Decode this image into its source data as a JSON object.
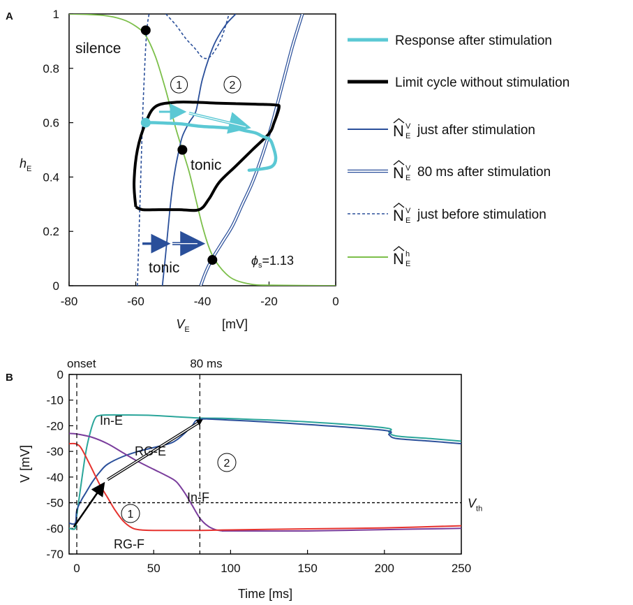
{
  "chart_data": [
    {
      "panel": "A",
      "type": "line",
      "xlabel_main": "V",
      "xlabel_sub": "E",
      "xlabel_unit": "[mV]",
      "ylabel_main": "h",
      "ylabel_sub": "E",
      "xlim": [
        -80,
        0
      ],
      "ylim": [
        0,
        1
      ],
      "xticks": [
        "-80",
        "-60",
        "-40",
        "-20",
        "0"
      ],
      "yticks": [
        "0",
        "0.2",
        "0.4",
        "0.6",
        "0.8",
        "1"
      ],
      "annotations": {
        "silence": "silence",
        "tonic_upper": "tonic",
        "tonic_lower": "tonic",
        "circle1": "1",
        "circle2": "2",
        "phi_symbol": "ϕ",
        "phi_sub": "s",
        "phi_value": "=1.13"
      },
      "legend": [
        {
          "label": "Response after stimulation",
          "color": "#5bc8d4",
          "style": "thick"
        },
        {
          "label": "Limit cycle without stimulation",
          "color": "#000000",
          "style": "thick"
        },
        {
          "label": "just after stimulation",
          "color": "#2a4f9a",
          "style": "solid",
          "sym_sub": "E",
          "sym_sup": "V"
        },
        {
          "label": "80 ms after stimulation",
          "color": "#2a4f9a",
          "style": "double",
          "sym_sub": "E",
          "sym_sup": "V"
        },
        {
          "label": "just before stimulation",
          "color": "#2a4f9a",
          "style": "dashed",
          "sym_sub": "E",
          "sym_sup": "V"
        },
        {
          "label": "",
          "color": "#7cbf4a",
          "style": "solid",
          "sym_sub": "E",
          "sym_sup": "h"
        }
      ],
      "series": [
        {
          "role": "nullcline_h",
          "color": "#7cbf4a",
          "x": [
            -80,
            -70,
            -64,
            -60,
            -57,
            -54,
            -51,
            -48,
            -46,
            -44,
            -42,
            -40,
            -38,
            -36,
            -33,
            -30,
            -25,
            -20,
            0
          ],
          "y": [
            1.0,
            0.995,
            0.98,
            0.955,
            0.92,
            0.84,
            0.72,
            0.58,
            0.5,
            0.42,
            0.32,
            0.22,
            0.14,
            0.09,
            0.045,
            0.02,
            0.005,
            0.002,
            0.0
          ]
        },
        {
          "role": "nullcline_v_before",
          "color": "#2a4f9a",
          "style": "dashed",
          "x": [
            -59.5,
            -59,
            -58.5,
            -58,
            -57.5,
            -57,
            -56.5,
            -56
          ],
          "y": [
            0.0,
            0.2,
            0.4,
            0.6,
            0.75,
            0.88,
            0.96,
            1.0
          ]
        },
        {
          "role": "nullcline_v_before_top",
          "color": "#2a4f9a",
          "style": "dashed",
          "x": [
            -51,
            -48,
            -45,
            -42,
            -40,
            -38,
            -36,
            -34,
            -32
          ],
          "y": [
            1.0,
            0.96,
            0.91,
            0.87,
            0.84,
            0.84,
            0.87,
            0.92,
            1.0
          ]
        },
        {
          "role": "nullcline_v_after",
          "color": "#2a4f9a",
          "style": "solid",
          "x": [
            -52,
            -51,
            -50,
            -49,
            -48,
            -47,
            -46,
            -44,
            -42,
            -41,
            -40,
            -38,
            -36,
            -33,
            -30
          ],
          "y": [
            0.0,
            0.12,
            0.25,
            0.36,
            0.44,
            0.5,
            0.55,
            0.6,
            0.64,
            0.7,
            0.76,
            0.84,
            0.9,
            0.96,
            1.0
          ]
        },
        {
          "role": "nullcline_v_80ms_a",
          "color": "#2a4f9a",
          "style": "double",
          "x": [
            -40.5,
            -39,
            -37,
            -34,
            -31,
            -28,
            -25,
            -22,
            -19,
            -16,
            -13,
            -10
          ],
          "y": [
            0.0,
            0.05,
            0.1,
            0.16,
            0.22,
            0.3,
            0.38,
            0.48,
            0.6,
            0.74,
            0.88,
            1.0
          ]
        },
        {
          "role": "limit_cycle",
          "color": "#000000",
          "x": [
            -60,
            -60.5,
            -59.5,
            -57,
            -54,
            -48,
            -42,
            -36,
            -30,
            -24,
            -18,
            -17,
            -18.5,
            -20,
            -25,
            -30,
            -35,
            -38,
            -41,
            -47,
            -53,
            -58,
            -60
          ],
          "y": [
            0.29,
            0.38,
            0.5,
            0.6,
            0.66,
            0.675,
            0.675,
            0.672,
            0.67,
            0.668,
            0.665,
            0.655,
            0.6,
            0.56,
            0.5,
            0.44,
            0.38,
            0.32,
            0.28,
            0.28,
            0.28,
            0.28,
            0.29
          ]
        },
        {
          "role": "response",
          "color": "#5bc8d4",
          "x": [
            -57,
            -54,
            -50,
            -46,
            -43,
            -40,
            -37,
            -34,
            -30,
            -27,
            -24,
            -22,
            -20,
            -19,
            -18,
            -19,
            -22,
            -26
          ],
          "y": [
            0.6,
            0.6,
            0.598,
            0.595,
            0.59,
            0.586,
            0.584,
            0.582,
            0.578,
            0.57,
            0.562,
            0.55,
            0.54,
            0.52,
            0.47,
            0.44,
            0.43,
            0.425
          ]
        }
      ],
      "points": [
        {
          "name": "silence",
          "x": -57,
          "y": 0.94,
          "color": "#000000"
        },
        {
          "name": "tonic-upper",
          "x": -46,
          "y": 0.5,
          "color": "#000000"
        },
        {
          "name": "tonic-lower",
          "x": -37,
          "y": 0.095,
          "color": "#000000"
        },
        {
          "name": "stim-start",
          "x": -57,
          "y": 0.6,
          "color": "#5bc8d4"
        }
      ]
    },
    {
      "panel": "B",
      "type": "line",
      "xlabel": "Time [ms]",
      "ylabel": "V [mV]",
      "xlim": [
        -5,
        250
      ],
      "ylim": [
        -70,
        0
      ],
      "xticks": [
        "0",
        "50",
        "100",
        "150",
        "200",
        "250"
      ],
      "yticks": [
        "0",
        "-10",
        "-20",
        "-30",
        "-40",
        "-50",
        "-60",
        "-70"
      ],
      "vlines": [
        {
          "x": 0,
          "label": "onset"
        },
        {
          "x": 80,
          "label": "80 ms"
        }
      ],
      "threshold": {
        "y": -50,
        "label_main": "V",
        "label_sub": "th"
      },
      "series_labels": {
        "in_e": "In-E",
        "rg_e": "RG-E",
        "in_f": "In-F",
        "rg_f": "RG-F",
        "c1": "1",
        "c2": "2"
      },
      "series": [
        {
          "name": "In-E",
          "color": "#2aa59a",
          "x": [
            -5,
            -1,
            0,
            3,
            6,
            9,
            12,
            15,
            20,
            30,
            50,
            80,
            100,
            150,
            200,
            203,
            208,
            230,
            250
          ],
          "y": [
            -60,
            -60,
            -55,
            -42,
            -30,
            -22,
            -17,
            -16,
            -15.8,
            -15.8,
            -16,
            -17,
            -17.2,
            -18.5,
            -20.8,
            -22.5,
            -24,
            -25,
            -26
          ]
        },
        {
          "name": "RG-E",
          "color": "#2a4f9a",
          "x": [
            -5,
            -1,
            0,
            3,
            6,
            10,
            15,
            20,
            30,
            40,
            50,
            60,
            65,
            70,
            75,
            80,
            100,
            150,
            200,
            203,
            208,
            230,
            250
          ],
          "y": [
            -58,
            -58,
            -53,
            -49,
            -46,
            -42,
            -38,
            -35,
            -32,
            -30,
            -28.5,
            -27,
            -25.5,
            -23,
            -20,
            -17.5,
            -17.8,
            -19.5,
            -21.8,
            -23.5,
            -25,
            -26,
            -27
          ]
        },
        {
          "name": "In-F",
          "color": "#7a3d9c",
          "x": [
            -5,
            0,
            10,
            20,
            30,
            40,
            50,
            60,
            65,
            70,
            75,
            80,
            85,
            90,
            95,
            100,
            150,
            200,
            250
          ],
          "y": [
            -23,
            -23.2,
            -24.5,
            -27,
            -30.5,
            -34,
            -37,
            -40,
            -42,
            -46,
            -51,
            -56,
            -59,
            -60.5,
            -61,
            -61,
            -61,
            -60.5,
            -60
          ]
        },
        {
          "name": "RG-F",
          "color": "#e6322e",
          "x": [
            -5,
            -1,
            2,
            5,
            10,
            15,
            20,
            25,
            30,
            35,
            40,
            50,
            80,
            100,
            150,
            200,
            250
          ],
          "y": [
            -27,
            -27,
            -28,
            -31,
            -37,
            -43,
            -48,
            -53,
            -57,
            -59.5,
            -60.5,
            -60.8,
            -60.8,
            -60.6,
            -60.2,
            -59.8,
            -59
          ]
        }
      ]
    }
  ]
}
